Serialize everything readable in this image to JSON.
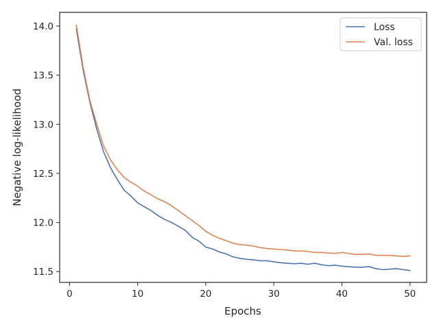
{
  "chart_data": {
    "type": "line",
    "title": "",
    "xlabel": "Epochs",
    "ylabel": "Negative log-likelihood",
    "xlim": [
      -1.45,
      52.45
    ],
    "ylim": [
      11.39,
      14.14
    ],
    "xticks": [
      0,
      10,
      20,
      30,
      40,
      50
    ],
    "xtick_labels": [
      "0",
      "10",
      "20",
      "30",
      "40",
      "50"
    ],
    "yticks": [
      11.5,
      12.0,
      12.5,
      13.0,
      13.5,
      14.0
    ],
    "ytick_labels": [
      "11.5",
      "12.0",
      "12.5",
      "13.0",
      "13.5",
      "14.0"
    ],
    "grid": false,
    "legend": "top-right",
    "x": [
      1,
      2,
      3,
      4,
      5,
      6,
      7,
      8,
      9,
      10,
      11,
      12,
      13,
      14,
      15,
      16,
      17,
      18,
      19,
      20,
      21,
      22,
      23,
      24,
      25,
      26,
      27,
      28,
      29,
      30,
      31,
      32,
      33,
      34,
      35,
      36,
      37,
      38,
      39,
      40,
      41,
      42,
      43,
      44,
      45,
      46,
      47,
      48,
      49,
      50
    ],
    "series": [
      {
        "name": "Loss",
        "color": "#4c72b0",
        "values": [
          13.97,
          13.55,
          13.22,
          12.95,
          12.72,
          12.56,
          12.44,
          12.33,
          12.27,
          12.2,
          12.16,
          12.12,
          12.07,
          12.03,
          12.0,
          11.96,
          11.92,
          11.85,
          11.81,
          11.75,
          11.73,
          11.7,
          11.68,
          11.65,
          11.635,
          11.625,
          11.62,
          11.61,
          11.61,
          11.6,
          11.59,
          11.585,
          11.58,
          11.585,
          11.575,
          11.585,
          11.57,
          11.56,
          11.565,
          11.555,
          11.55,
          11.545,
          11.545,
          11.55,
          11.53,
          11.52,
          11.525,
          11.53,
          11.52,
          11.51
        ]
      },
      {
        "name": "Val. loss",
        "color": "#dd8452",
        "values": [
          14.01,
          13.58,
          13.24,
          13.0,
          12.78,
          12.64,
          12.54,
          12.46,
          12.41,
          12.37,
          12.32,
          12.28,
          12.24,
          12.21,
          12.17,
          12.12,
          12.07,
          12.02,
          11.97,
          11.91,
          11.87,
          11.84,
          11.815,
          11.79,
          11.775,
          11.77,
          11.76,
          11.745,
          11.735,
          11.73,
          11.725,
          11.72,
          11.71,
          11.71,
          11.705,
          11.695,
          11.695,
          11.69,
          11.685,
          11.695,
          11.685,
          11.675,
          11.675,
          11.68,
          11.665,
          11.665,
          11.665,
          11.66,
          11.655,
          11.66
        ]
      }
    ]
  }
}
